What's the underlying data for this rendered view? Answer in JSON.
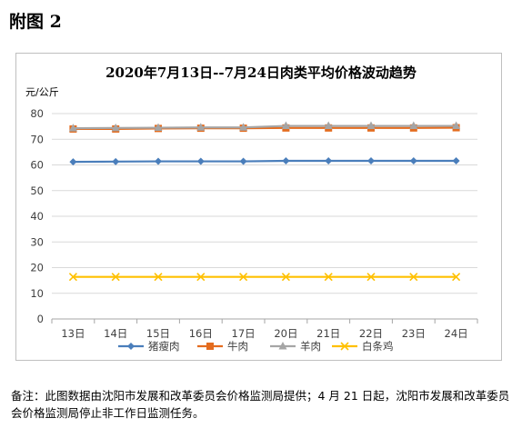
{
  "heading": "附图 2",
  "note": "备注：此图数据由沈阳市发展和改革委员会价格监测局提供；4 月 21 日起，沈阳市发展和改革委员会价格监测局停止非工作日监测任务。",
  "chart_data": {
    "type": "line",
    "title": "2020年7月13日--7月24日肉类平均价格波动趋势",
    "ylabel": "元/公斤",
    "xlabel": "",
    "ylim": [
      0,
      80
    ],
    "yticks": [
      0,
      10,
      20,
      30,
      40,
      50,
      60,
      70,
      80
    ],
    "grid": true,
    "legend": "bottom",
    "categories": [
      "13日",
      "14日",
      "15日",
      "16日",
      "17日",
      "20日",
      "21日",
      "22日",
      "23日",
      "24日"
    ],
    "series": [
      {
        "name": "猪瘦肉",
        "color": "#4a7ebb",
        "marker": "diamond",
        "values": [
          61.2,
          61.3,
          61.4,
          61.4,
          61.4,
          61.6,
          61.6,
          61.6,
          61.6,
          61.6
        ]
      },
      {
        "name": "牛肉",
        "color": "#e46c1f",
        "marker": "square",
        "values": [
          74.0,
          74.0,
          74.2,
          74.3,
          74.3,
          74.4,
          74.4,
          74.4,
          74.4,
          74.5
        ]
      },
      {
        "name": "羊肉",
        "color": "#a5a5a5",
        "marker": "triangle",
        "values": [
          74.3,
          74.4,
          74.5,
          74.6,
          74.6,
          75.2,
          75.2,
          75.2,
          75.2,
          75.2
        ]
      },
      {
        "name": "白条鸡",
        "color": "#ffc000",
        "marker": "x",
        "values": [
          16.4,
          16.4,
          16.4,
          16.4,
          16.4,
          16.4,
          16.4,
          16.4,
          16.4,
          16.4
        ]
      }
    ]
  }
}
